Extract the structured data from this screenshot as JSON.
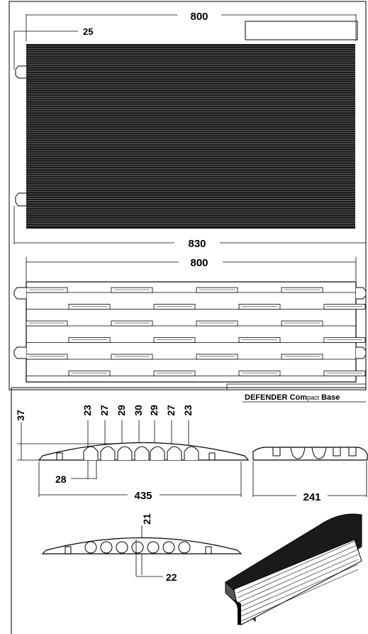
{
  "top_view": {
    "width_top": "800",
    "inset": "25",
    "width_bottom": "830"
  },
  "bottom_view": {
    "width": "800"
  },
  "title_block": {
    "brand": "DEFENDER",
    "model_prefix": "Com",
    "model_mid": "pact",
    "model_suffix": " Base"
  },
  "section": {
    "height": "37",
    "channels": [
      "23",
      "27",
      "29",
      "30",
      "29",
      "27",
      "23"
    ],
    "gap": "28",
    "base_width": "435"
  },
  "end_view": {
    "width": "241"
  },
  "cross_section": {
    "top": "21",
    "bottom": "22"
  }
}
